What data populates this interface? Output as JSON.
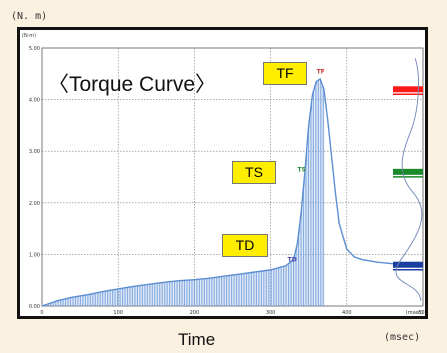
{
  "chart_data": {
    "type": "area",
    "title": "〈Torque Curve〉",
    "xlabel": "Time",
    "x_unit": "(msec)",
    "y_unit": "(N. m)",
    "y_axis_unit_inner": "(N·m)",
    "x_axis_unit_inner": "(msec)",
    "xlim": [
      0,
      500
    ],
    "ylim": [
      0,
      5.0
    ],
    "x_ticks": [
      "0",
      "100",
      "200",
      "300",
      "400",
      "500"
    ],
    "y_ticks": [
      "0.00",
      "1.00",
      "2.00",
      "3.00",
      "4.00",
      "5.00"
    ],
    "grid": true,
    "series": [
      {
        "x": [
          0,
          20,
          40,
          60,
          80,
          100,
          120,
          140,
          160,
          180,
          200,
          220,
          240,
          260,
          280,
          300,
          320,
          330,
          335,
          340,
          345,
          350,
          355,
          360,
          365,
          370,
          375,
          380,
          385,
          390,
          400,
          410,
          420,
          440,
          460,
          480,
          500
        ],
        "y": [
          0.0,
          0.1,
          0.17,
          0.22,
          0.28,
          0.33,
          0.38,
          0.42,
          0.46,
          0.49,
          0.51,
          0.54,
          0.58,
          0.62,
          0.66,
          0.7,
          0.78,
          0.9,
          1.2,
          1.8,
          2.6,
          3.5,
          4.1,
          4.35,
          4.4,
          4.2,
          3.6,
          2.9,
          2.2,
          1.6,
          1.1,
          0.95,
          0.9,
          0.85,
          0.82,
          0.8,
          0.8
        ]
      }
    ],
    "shaded_until_x": 370,
    "markers": [
      {
        "label": "TF",
        "x": 363,
        "y": 4.45
      },
      {
        "label": "TS",
        "x": 338,
        "y": 2.55
      },
      {
        "label": "TD",
        "x": 325,
        "y": 0.8
      }
    ],
    "callouts": [
      {
        "label": "TF",
        "color": "#ff0000"
      },
      {
        "label": "TS",
        "color": "#00aa00"
      },
      {
        "label": "TD",
        "color": "#1a1aff"
      }
    ],
    "side_bands": [
      {
        "y": 4.2,
        "color": "#ff1a1a"
      },
      {
        "y": 2.6,
        "color": "#1a8a2a"
      },
      {
        "y": 0.8,
        "color": "#1a3fa0"
      }
    ],
    "colors": {
      "curve": "#5b8ed1",
      "fill_lines": "#7aa3dd",
      "grid": "#7a7a7a",
      "tag_bg": "#ffee00"
    }
  }
}
